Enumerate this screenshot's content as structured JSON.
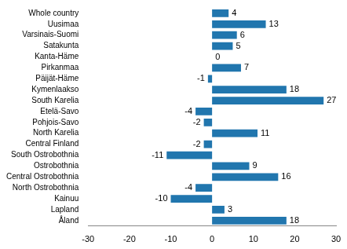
{
  "chart_data": {
    "type": "bar",
    "orientation": "horizontal",
    "categories": [
      "Whole country",
      "Uusimaa",
      "Varsinais-Suomi",
      "Satakunta",
      "Kanta-Häme",
      "Pirkanmaa",
      "Päijät-Häme",
      "Kymenlaakso",
      "South Karelia",
      "Etelä-Savo",
      "Pohjois-Savo",
      "North Karelia",
      "Central Finland",
      "South Ostrobothnia",
      "Ostrobothnia",
      "Central Ostrobothnia",
      "North Ostrobothnia",
      "Kainuu",
      "Lapland",
      "Åland"
    ],
    "values": [
      4,
      13,
      6,
      5,
      0,
      7,
      -1,
      18,
      27,
      -4,
      -2,
      11,
      -2,
      -11,
      9,
      16,
      -4,
      -10,
      3,
      18
    ],
    "color": "#2176ae",
    "xlim": [
      -30,
      30
    ],
    "xticks": [
      -30,
      -20,
      -10,
      0,
      10,
      20,
      30
    ],
    "grid": false,
    "data_labels": true
  }
}
